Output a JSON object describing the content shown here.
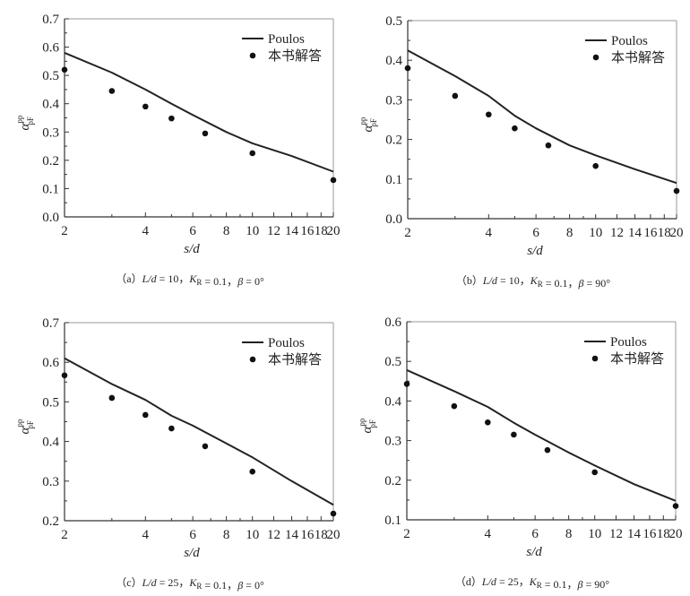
{
  "chart_data": [
    {
      "id": "a",
      "type": "line",
      "title": "",
      "caption": [
        {
          "t": "（a）"
        },
        {
          "t": "L/d",
          "i": true
        },
        {
          "t": " = 10，"
        },
        {
          "t": "K",
          "i": true
        },
        {
          "t": "R",
          "sub": true
        },
        {
          "t": " = 0.1，"
        },
        {
          "t": "β",
          "i": true
        },
        {
          "t": " = 0°"
        }
      ],
      "xlabel": "s/d",
      "ylabel": {
        "base": "α",
        "sup": "pp",
        "sub": "pF"
      },
      "xscale": "log",
      "xlim": [
        2,
        20
      ],
      "ylim": [
        0.0,
        0.7
      ],
      "xticks": [
        "2",
        "4",
        "6",
        "8",
        "10",
        "12",
        "14",
        "16",
        "18",
        "20"
      ],
      "yticks": [
        "0.0",
        "0.1",
        "0.2",
        "0.3",
        "0.4",
        "0.5",
        "0.6",
        "0.7"
      ],
      "legend_position": "top-right",
      "series": [
        {
          "name": "Poulos",
          "style": "line",
          "x": [
            2,
            3,
            4,
            5,
            6,
            8,
            10,
            14,
            20
          ],
          "y": [
            0.58,
            0.51,
            0.45,
            0.4,
            0.36,
            0.3,
            0.26,
            0.215,
            0.16
          ]
        },
        {
          "name": "本书解答",
          "style": "scatter",
          "x": [
            2,
            3,
            4,
            5,
            6.67,
            10,
            20
          ],
          "y": [
            0.52,
            0.445,
            0.39,
            0.348,
            0.295,
            0.225,
            0.13
          ]
        }
      ]
    },
    {
      "id": "b",
      "type": "line",
      "title": "",
      "caption": [
        {
          "t": "（b）"
        },
        {
          "t": "L/d",
          "i": true
        },
        {
          "t": " = 10，"
        },
        {
          "t": "K",
          "i": true
        },
        {
          "t": "R",
          "sub": true
        },
        {
          "t": " = 0.1，"
        },
        {
          "t": "β",
          "i": true
        },
        {
          "t": " = 90°"
        }
      ],
      "xlabel": "s/d",
      "ylabel": {
        "base": "α",
        "sup": "pp",
        "sub": "pF"
      },
      "xscale": "log",
      "xlim": [
        2,
        20
      ],
      "ylim": [
        0.0,
        0.5
      ],
      "xticks": [
        "2",
        "4",
        "6",
        "8",
        "10",
        "12",
        "14",
        "16",
        "18",
        "20"
      ],
      "yticks": [
        "0.0",
        "0.1",
        "0.2",
        "0.3",
        "0.4",
        "0.5"
      ],
      "legend_position": "top-right",
      "series": [
        {
          "name": "Poulos",
          "style": "line",
          "x": [
            2,
            3,
            4,
            5,
            6,
            8,
            10,
            14,
            20
          ],
          "y": [
            0.425,
            0.36,
            0.31,
            0.26,
            0.228,
            0.185,
            0.16,
            0.125,
            0.09
          ]
        },
        {
          "name": "本书解答",
          "style": "scatter",
          "x": [
            2,
            3,
            4,
            5,
            6.67,
            10,
            20
          ],
          "y": [
            0.38,
            0.31,
            0.263,
            0.228,
            0.185,
            0.133,
            0.07
          ]
        }
      ]
    },
    {
      "id": "c",
      "type": "line",
      "title": "",
      "caption": [
        {
          "t": "（c）"
        },
        {
          "t": "L/d",
          "i": true
        },
        {
          "t": " = 25，"
        },
        {
          "t": "K",
          "i": true
        },
        {
          "t": "R",
          "sub": true
        },
        {
          "t": " = 0.1，"
        },
        {
          "t": "β",
          "i": true
        },
        {
          "t": " = 0°"
        }
      ],
      "xlabel": "s/d",
      "ylabel": {
        "base": "α",
        "sup": "pp",
        "sub": "pF"
      },
      "xscale": "log",
      "xlim": [
        2,
        20
      ],
      "ylim": [
        0.2,
        0.7
      ],
      "xticks": [
        "2",
        "4",
        "6",
        "8",
        "10",
        "12",
        "14",
        "16",
        "18",
        "20"
      ],
      "yticks": [
        "0.2",
        "0.3",
        "0.4",
        "0.5",
        "0.6",
        "0.7"
      ],
      "legend_position": "top-right",
      "series": [
        {
          "name": "Poulos",
          "style": "line",
          "x": [
            2,
            3,
            4,
            5,
            6,
            8,
            10,
            14,
            20
          ],
          "y": [
            0.61,
            0.545,
            0.505,
            0.465,
            0.44,
            0.395,
            0.36,
            0.3,
            0.24
          ]
        },
        {
          "name": "本书解答",
          "style": "scatter",
          "x": [
            2,
            3,
            4,
            5,
            6.67,
            10,
            20
          ],
          "y": [
            0.567,
            0.51,
            0.467,
            0.433,
            0.388,
            0.324,
            0.218
          ]
        }
      ]
    },
    {
      "id": "d",
      "type": "line",
      "title": "",
      "caption": [
        {
          "t": "（d）"
        },
        {
          "t": "L/d",
          "i": true
        },
        {
          "t": " = 25，"
        },
        {
          "t": "K",
          "i": true
        },
        {
          "t": "R",
          "sub": true
        },
        {
          "t": " = 0.1，"
        },
        {
          "t": "β",
          "i": true
        },
        {
          "t": " = 90°"
        }
      ],
      "xlabel": "s/d",
      "ylabel": {
        "base": "α",
        "sup": "pp",
        "sub": "pF"
      },
      "xscale": "log",
      "xlim": [
        2,
        20
      ],
      "ylim": [
        0.1,
        0.6
      ],
      "xticks": [
        "2",
        "4",
        "6",
        "8",
        "10",
        "12",
        "14",
        "16",
        "18",
        "20"
      ],
      "yticks": [
        "0.1",
        "0.2",
        "0.3",
        "0.4",
        "0.5",
        "0.6"
      ],
      "legend_position": "top-right",
      "series": [
        {
          "name": "Poulos",
          "style": "line",
          "x": [
            2,
            3,
            4,
            5,
            6,
            8,
            10,
            14,
            20
          ],
          "y": [
            0.478,
            0.425,
            0.385,
            0.345,
            0.315,
            0.27,
            0.237,
            0.19,
            0.148
          ]
        },
        {
          "name": "本书解答",
          "style": "scatter",
          "x": [
            2,
            3,
            4,
            5,
            6.67,
            10,
            20
          ],
          "y": [
            0.443,
            0.387,
            0.346,
            0.315,
            0.276,
            0.22,
            0.135
          ]
        }
      ]
    }
  ]
}
